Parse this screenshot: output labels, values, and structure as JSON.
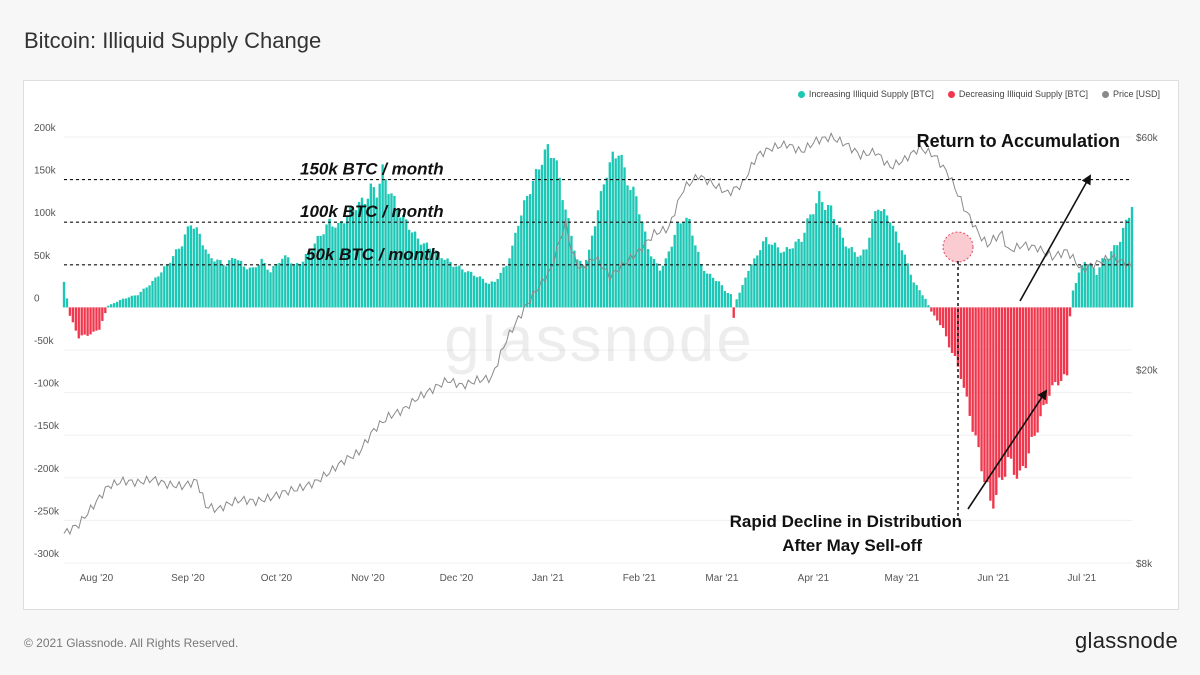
{
  "title": "Bitcoin: Illiquid Supply Change",
  "footer": {
    "copyright": "© 2021 Glassnode. All Rights Reserved.",
    "brand": "glassnode"
  },
  "watermark": "glassnode",
  "legend": [
    {
      "label": "Increasing Illiquid Supply [BTC]",
      "color": "#1cc7b5"
    },
    {
      "label": "Decreasing Illiquid Supply [BTC]",
      "color": "#f0374d"
    },
    {
      "label": "Price [USD]",
      "color": "#8a8a8a"
    }
  ],
  "annotations": {
    "line150": "150k BTC / month",
    "line100": "100k BTC / month",
    "line50": "50k BTC / month",
    "accumulation": "Return to Accumulation",
    "decline1": "Rapid Decline in Distribution",
    "decline2": "After May Sell-off"
  },
  "chart_data": {
    "type": "bar",
    "x_start": "2020-07-21",
    "x_end": "2021-07-18",
    "x_ticks": [
      "Aug '20",
      "Sep '20",
      "Oct '20",
      "Nov '20",
      "Dec '20",
      "Jan '21",
      "Feb '21",
      "Mar '21",
      "Apr '21",
      "May '21",
      "Jun '21",
      "Jul '21"
    ],
    "y_left": {
      "label": "",
      "ticks": [
        "200k",
        "150k",
        "100k",
        "50k",
        "0",
        "-50k",
        "-100k",
        "-150k",
        "-200k",
        "-250k",
        "-300k"
      ],
      "ylim": [
        -300000,
        200000
      ]
    },
    "y_right": {
      "label": "",
      "ticks": [
        "$60k",
        "$20k",
        "$8k"
      ],
      "scale": "log",
      "ylim": [
        8000,
        60000
      ]
    },
    "reference_lines": [
      150000,
      100000,
      50000
    ],
    "series": [
      {
        "name": "Increasing Illiquid Supply [BTC]",
        "color": "#1cc7b5",
        "keys": [
          [
            0,
            30
          ],
          [
            2,
            -10
          ],
          [
            5,
            -35
          ],
          [
            10,
            -30
          ],
          [
            12,
            -25
          ],
          [
            15,
            2
          ],
          [
            20,
            10
          ],
          [
            25,
            15
          ],
          [
            30,
            30
          ],
          [
            35,
            50
          ],
          [
            38,
            65
          ],
          [
            40,
            75
          ],
          [
            43,
            100
          ],
          [
            46,
            85
          ],
          [
            49,
            60
          ],
          [
            52,
            55
          ],
          [
            55,
            50
          ],
          [
            58,
            60
          ],
          [
            61,
            48
          ],
          [
            64,
            45
          ],
          [
            67,
            55
          ],
          [
            70,
            42
          ],
          [
            73,
            55
          ],
          [
            76,
            60
          ],
          [
            78,
            48
          ],
          [
            81,
            55
          ],
          [
            84,
            70
          ],
          [
            87,
            85
          ],
          [
            90,
            100
          ],
          [
            93,
            95
          ],
          [
            96,
            108
          ],
          [
            99,
            120
          ],
          [
            102,
            125
          ],
          [
            104,
            140
          ],
          [
            106,
            135
          ],
          [
            108,
            160
          ],
          [
            110,
            140
          ],
          [
            112,
            125
          ],
          [
            114,
            110
          ],
          [
            116,
            100
          ],
          [
            118,
            90
          ],
          [
            120,
            80
          ],
          [
            122,
            75
          ],
          [
            124,
            70
          ],
          [
            126,
            65
          ],
          [
            128,
            60
          ],
          [
            130,
            55
          ],
          [
            132,
            50
          ],
          [
            135,
            45
          ],
          [
            138,
            40
          ],
          [
            141,
            35
          ],
          [
            144,
            28
          ],
          [
            146,
            30
          ],
          [
            148,
            40
          ],
          [
            150,
            50
          ],
          [
            152,
            70
          ],
          [
            154,
            100
          ],
          [
            156,
            120
          ],
          [
            158,
            140
          ],
          [
            160,
            155
          ],
          [
            162,
            175
          ],
          [
            164,
            185
          ],
          [
            166,
            180
          ],
          [
            168,
            150
          ],
          [
            170,
            115
          ],
          [
            172,
            85
          ],
          [
            174,
            55
          ],
          [
            176,
            50
          ],
          [
            178,
            65
          ],
          [
            180,
            100
          ],
          [
            182,
            130
          ],
          [
            184,
            160
          ],
          [
            186,
            175
          ],
          [
            188,
            185
          ],
          [
            190,
            160
          ],
          [
            192,
            140
          ],
          [
            194,
            130
          ],
          [
            196,
            100
          ],
          [
            198,
            70
          ],
          [
            200,
            55
          ],
          [
            202,
            45
          ],
          [
            204,
            55
          ],
          [
            206,
            75
          ],
          [
            208,
            95
          ],
          [
            210,
            105
          ],
          [
            212,
            100
          ],
          [
            214,
            75
          ],
          [
            216,
            50
          ],
          [
            218,
            40
          ],
          [
            220,
            35
          ],
          [
            222,
            30
          ],
          [
            224,
            20
          ],
          [
            226,
            15
          ],
          [
            227,
            -12
          ],
          [
            228,
            10
          ],
          [
            230,
            25
          ],
          [
            232,
            45
          ],
          [
            234,
            55
          ],
          [
            236,
            70
          ],
          [
            238,
            80
          ],
          [
            240,
            75
          ],
          [
            242,
            70
          ],
          [
            244,
            65
          ],
          [
            246,
            70
          ],
          [
            248,
            75
          ],
          [
            250,
            80
          ],
          [
            252,
            100
          ],
          [
            254,
            115
          ],
          [
            256,
            130
          ],
          [
            258,
            120
          ],
          [
            260,
            115
          ],
          [
            262,
            100
          ],
          [
            264,
            80
          ],
          [
            266,
            70
          ],
          [
            268,
            65
          ],
          [
            270,
            60
          ],
          [
            272,
            70
          ],
          [
            274,
            100
          ],
          [
            276,
            120
          ],
          [
            278,
            110
          ],
          [
            280,
            105
          ],
          [
            282,
            85
          ],
          [
            284,
            70
          ],
          [
            286,
            50
          ],
          [
            288,
            30
          ],
          [
            290,
            20
          ],
          [
            292,
            10
          ],
          [
            294,
            -5
          ],
          [
            296,
            -15
          ],
          [
            298,
            -25
          ],
          [
            300,
            -45
          ],
          [
            302,
            -60
          ],
          [
            304,
            -80
          ],
          [
            306,
            -110
          ],
          [
            308,
            -140
          ],
          [
            310,
            -170
          ],
          [
            312,
            -200
          ],
          [
            314,
            -230
          ],
          [
            316,
            -220
          ],
          [
            318,
            -200
          ],
          [
            320,
            -180
          ],
          [
            322,
            -190
          ],
          [
            324,
            -200
          ],
          [
            326,
            -180
          ],
          [
            328,
            -160
          ],
          [
            330,
            -140
          ],
          [
            332,
            -120
          ],
          [
            334,
            -100
          ],
          [
            336,
            -90
          ],
          [
            338,
            -85
          ],
          [
            340,
            -80
          ],
          [
            341,
            -10
          ],
          [
            342,
            20
          ],
          [
            344,
            40
          ],
          [
            346,
            55
          ],
          [
            348,
            50
          ],
          [
            350,
            40
          ],
          [
            352,
            55
          ],
          [
            354,
            60
          ],
          [
            356,
            70
          ],
          [
            358,
            80
          ],
          [
            360,
            100
          ],
          [
            362,
            120
          ],
          [
            364,
            140
          ],
          [
            366,
            150
          ],
          [
            368,
            145
          ],
          [
            369,
            120
          ]
        ]
      },
      {
        "name": "Price [USD]",
        "color": "#8a8a8a",
        "keys": [
          [
            0,
            9200
          ],
          [
            5,
            9600
          ],
          [
            10,
            10500
          ],
          [
            15,
            11500
          ],
          [
            20,
            11800
          ],
          [
            25,
            11700
          ],
          [
            30,
            11900
          ],
          [
            35,
            11600
          ],
          [
            40,
            11500
          ],
          [
            45,
            11800
          ],
          [
            48,
            10500
          ],
          [
            52,
            10300
          ],
          [
            56,
            10600
          ],
          [
            60,
            10800
          ],
          [
            65,
            10700
          ],
          [
            70,
            10900
          ],
          [
            75,
            11200
          ],
          [
            80,
            11400
          ],
          [
            85,
            11700
          ],
          [
            90,
            12300
          ],
          [
            95,
            13000
          ],
          [
            100,
            13500
          ],
          [
            105,
            15000
          ],
          [
            110,
            16000
          ],
          [
            115,
            16500
          ],
          [
            120,
            17500
          ],
          [
            125,
            18200
          ],
          [
            130,
            19000
          ],
          [
            135,
            18500
          ],
          [
            140,
            19000
          ],
          [
            145,
            19200
          ],
          [
            150,
            23000
          ],
          [
            155,
            26000
          ],
          [
            160,
            29000
          ],
          [
            165,
            32000
          ],
          [
            170,
            40000
          ],
          [
            172,
            35000
          ],
          [
            175,
            32000
          ],
          [
            180,
            34000
          ],
          [
            185,
            31000
          ],
          [
            190,
            33000
          ],
          [
            195,
            35000
          ],
          [
            200,
            38000
          ],
          [
            205,
            39000
          ],
          [
            210,
            47000
          ],
          [
            215,
            50000
          ],
          [
            220,
            48000
          ],
          [
            225,
            46000
          ],
          [
            230,
            48000
          ],
          [
            235,
            55000
          ],
          [
            240,
            57000
          ],
          [
            245,
            58000
          ],
          [
            250,
            56000
          ],
          [
            255,
            59000
          ],
          [
            260,
            60000
          ],
          [
            265,
            58000
          ],
          [
            270,
            55000
          ],
          [
            275,
            56000
          ],
          [
            280,
            52000
          ],
          [
            285,
            54000
          ],
          [
            290,
            57000
          ],
          [
            295,
            55000
          ],
          [
            300,
            50000
          ],
          [
            305,
            43000
          ],
          [
            310,
            38000
          ],
          [
            313,
            36000
          ],
          [
            315,
            37000
          ],
          [
            318,
            38000
          ],
          [
            320,
            35000
          ],
          [
            325,
            36000
          ],
          [
            330,
            35500
          ],
          [
            335,
            34000
          ],
          [
            340,
            35000
          ],
          [
            345,
            32000
          ],
          [
            350,
            33000
          ],
          [
            355,
            34000
          ],
          [
            360,
            33000
          ],
          [
            365,
            31500
          ],
          [
            369,
            31500
          ]
        ]
      }
    ]
  }
}
